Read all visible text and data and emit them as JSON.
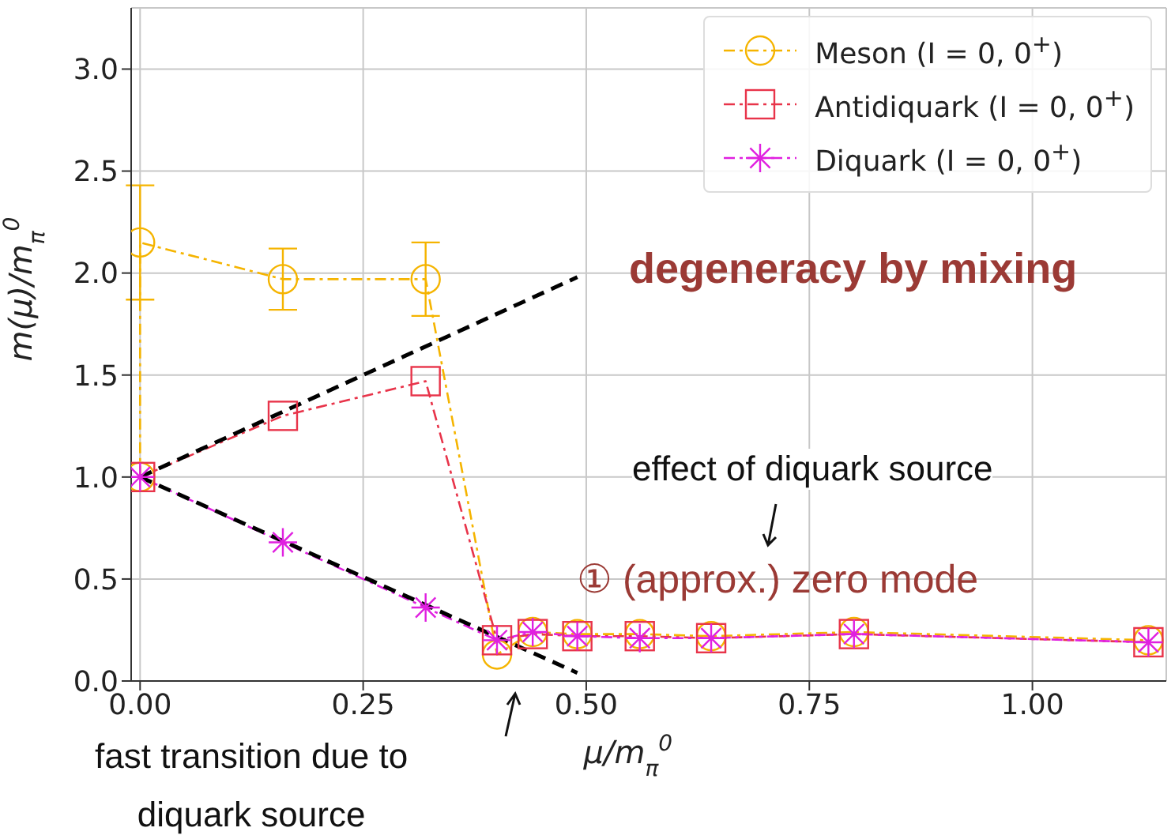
{
  "chart_data": {
    "type": "line",
    "xlabel": "μ/m$_{π}$$^{0}$",
    "ylabel": "m(μ)/m$_{π}$$^{0}$",
    "xlim": [
      -0.01,
      1.15
    ],
    "ylim": [
      0,
      3.3
    ],
    "xticks": [
      {
        "value": 0,
        "label": "0.00"
      },
      {
        "value": 0.25,
        "label": "0.25"
      },
      {
        "value": 0.5,
        "label": "0.50"
      },
      {
        "value": 0.75,
        "label": "0.75"
      },
      {
        "value": 1,
        "label": "1.00"
      }
    ],
    "yticks": [
      {
        "value": 0,
        "label": "0.0"
      },
      {
        "value": 0.5,
        "label": "0.5"
      },
      {
        "value": 1,
        "label": "1.0"
      },
      {
        "value": 1.5,
        "label": "1.5"
      },
      {
        "value": 2,
        "label": "2.0"
      },
      {
        "value": 2.5,
        "label": "2.5"
      },
      {
        "value": 3,
        "label": "3.0"
      }
    ],
    "grid": true,
    "legend": "top right",
    "line_style": "dashed",
    "series": [
      {
        "name": "Meson (I = 0, 0$^{+}$)",
        "color": "#f5b400",
        "marker": "circle",
        "x": [
          0,
          0,
          0.16,
          0.32,
          0.4,
          0.44,
          0.49,
          0.56,
          0.64,
          0.8,
          1.13
        ],
        "values": [
          1.0,
          2.15,
          1.97,
          1.97,
          0.13,
          0.24,
          0.23,
          0.23,
          0.22,
          0.24,
          0.2
        ],
        "errors": [
          null,
          0.28,
          0.15,
          0.18,
          null,
          null,
          null,
          null,
          null,
          null,
          null
        ]
      },
      {
        "name": "Antidiquark (I = 0, 0$^{+}$)",
        "color": "#e8344a",
        "marker": "square",
        "x": [
          0,
          0.16,
          0.32,
          0.4,
          0.44,
          0.49,
          0.56,
          0.64,
          0.8,
          1.13
        ],
        "values": [
          1.0,
          1.3,
          1.47,
          0.2,
          0.23,
          0.22,
          0.22,
          0.21,
          0.23,
          0.19
        ]
      },
      {
        "name": "Diquark (I = 0, 0$^{+}$)",
        "color": "#e020e0",
        "marker": "cross",
        "x": [
          0,
          0.16,
          0.32,
          0.4,
          0.44,
          0.49,
          0.56,
          0.64,
          0.8,
          1.13
        ],
        "values": [
          1.0,
          0.68,
          0.36,
          0.2,
          0.24,
          0.22,
          0.21,
          0.21,
          0.23,
          0.19
        ]
      },
      {
        "color": "#000000",
        "marker": "none",
        "x": [
          0,
          0.49
        ],
        "values": [
          1.0,
          1.98
        ]
      },
      {
        "color": "#000000",
        "marker": "none",
        "x": [
          0,
          0.49
        ],
        "values": [
          1.0,
          0.04
        ]
      }
    ],
    "annotations": [
      "degeneracy by mixing",
      "effect of diquark source",
      "① (approx.) zero mode",
      "fast transition due to\ndiquark source"
    ]
  }
}
